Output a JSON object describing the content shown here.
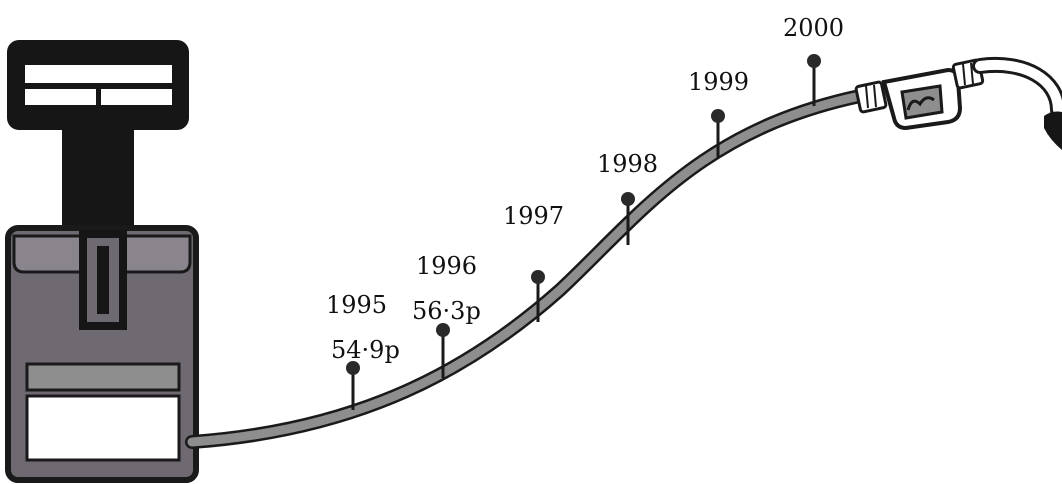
{
  "chart_data": {
    "type": "line",
    "x": [
      "1995",
      "1996",
      "1997",
      "1998",
      "1999",
      "2000"
    ],
    "values": [
      54.9,
      56.3,
      null,
      null,
      null,
      null
    ],
    "value_labels": [
      "54·9p",
      "56·3p",
      "",
      "",
      "",
      ""
    ]
  },
  "colors": {
    "hose": "#8e8e8e",
    "outline": "#1a1a1a",
    "pump_body": "#6f6a72",
    "pump_dark": "#161616",
    "pin": "#2a2a2a"
  }
}
